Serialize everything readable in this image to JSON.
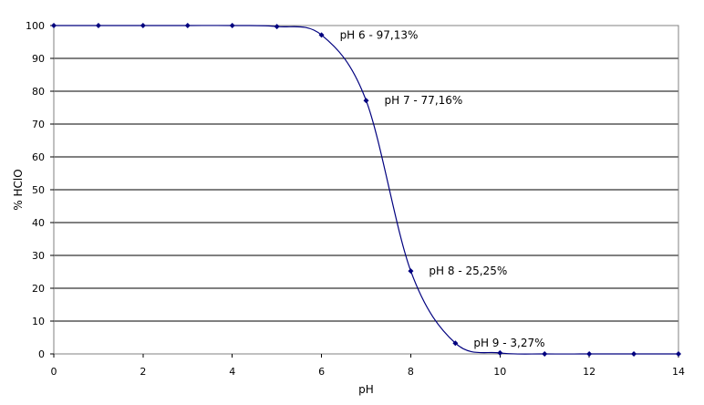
{
  "chart_data": {
    "type": "scatter",
    "title": "",
    "xlabel": "pH",
    "ylabel": "% HClO",
    "xlim": [
      0,
      14
    ],
    "ylim": [
      0,
      100
    ],
    "x_ticks": [
      0,
      2,
      4,
      6,
      8,
      10,
      12,
      14
    ],
    "y_ticks": [
      0,
      10,
      20,
      30,
      40,
      50,
      60,
      70,
      80,
      90,
      100
    ],
    "grid": "horizontal",
    "line_style": "smooth",
    "colors": {
      "series": "#00007f",
      "grid": "#000000",
      "frame": "#808080"
    },
    "series": [
      {
        "x": [
          0,
          1,
          2,
          3,
          4,
          5,
          6,
          7,
          8,
          9,
          10,
          11,
          12,
          13,
          14
        ],
        "y": [
          100,
          100,
          100,
          100,
          100,
          99.7,
          97.13,
          77.16,
          25.25,
          3.27,
          0.3,
          0,
          0,
          0,
          0
        ]
      }
    ],
    "annotations": [
      {
        "x": 6,
        "y": 97.13,
        "text": "pH 6 - 97,13%"
      },
      {
        "x": 7,
        "y": 77.16,
        "text": "pH 7 - 77,16%"
      },
      {
        "x": 8,
        "y": 25.25,
        "text": "pH 8 - 25,25%"
      },
      {
        "x": 9,
        "y": 3.27,
        "text": "pH 9 - 3,27%"
      }
    ]
  }
}
